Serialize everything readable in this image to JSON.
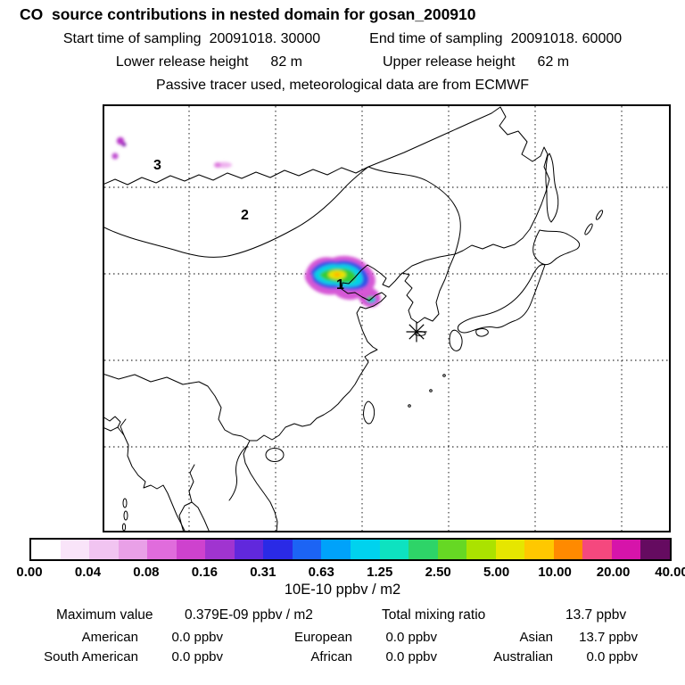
{
  "header": {
    "title": "CO  source contributions in nested domain for gosan_200910",
    "sampling": {
      "start_label": "Start time of sampling",
      "start_value": "20091018. 30000",
      "end_label": "End time of sampling",
      "end_value": "20091018. 60000"
    },
    "release": {
      "lower_label": "Lower release height",
      "lower_value": "82 m",
      "upper_label": "Upper release height",
      "upper_value": "62 m"
    },
    "note": "Passive tracer used, meteorological data are from ECMWF"
  },
  "map": {
    "region_labels": [
      {
        "label": "3"
      },
      {
        "label": "2"
      },
      {
        "label": "1"
      }
    ],
    "receptor": {
      "site": "gosan",
      "marker": "asterisk"
    }
  },
  "colorbar": {
    "ticks": [
      "0.00",
      "0.04",
      "0.08",
      "0.16",
      "0.31",
      "0.63",
      "1.25",
      "2.50",
      "5.00",
      "10.00",
      "20.00",
      "40.00"
    ],
    "unit": "10E-10 ppbv / m2",
    "colors": [
      "#ffffff",
      "#f9e4f9",
      "#f1c4f1",
      "#e9a0e7",
      "#e06cdc",
      "#ce42ce",
      "#a034d0",
      "#6128dc",
      "#2a2ae6",
      "#1c64f4",
      "#00a2fa",
      "#00d2ee",
      "#0ee2c0",
      "#2ed468",
      "#66d824",
      "#abe200",
      "#e6e600",
      "#ffc800",
      "#ff8a00",
      "#f5487e",
      "#d614aa",
      "#650b60"
    ]
  },
  "stats": {
    "maximum_label": "Maximum value",
    "maximum_value": "0.379E-09 ppbv / m2",
    "total_label": "Total mixing ratio",
    "total_value": "13.7 ppbv",
    "regions": [
      {
        "name": "American",
        "value": "0.0 ppbv"
      },
      {
        "name": "European",
        "value": "0.0 ppbv"
      },
      {
        "name": "Asian",
        "value": "13.7 ppbv"
      },
      {
        "name": "South American",
        "value": "0.0 ppbv"
      },
      {
        "name": "African",
        "value": "0.0 ppbv"
      },
      {
        "name": "Australian",
        "value": "0.0 ppbv"
      }
    ]
  },
  "chart_data": {
    "type": "heatmap",
    "title": "CO source contributions in nested domain for gosan_200910",
    "colorbar_scale": [
      0.0,
      0.04,
      0.08,
      0.16,
      0.31,
      0.63,
      1.25,
      2.5,
      5.0,
      10.0,
      20.0,
      40.0
    ],
    "colorbar_unit": "10E-10 ppbv / m2",
    "maximum_value": "0.379E-09 ppbv / m2",
    "total_mixing_ratio_ppbv": 13.7,
    "contributions_ppbv": {
      "American": 0.0,
      "European": 0.0,
      "Asian": 13.7,
      "South American": 0.0,
      "African": 0.0,
      "Australian": 0.0
    },
    "notes": "Main contribution plume over northeast China near 113-122E, 36-42N; minor spots near 91-93E, 52-56N; receptor marked with asterisk at Gosan (~126E, 33N)"
  }
}
